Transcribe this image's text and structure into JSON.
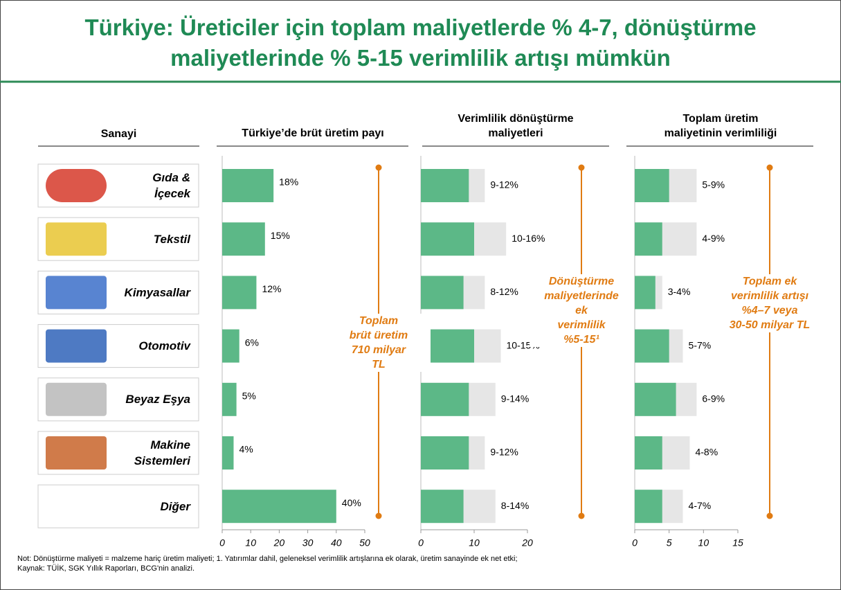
{
  "title": "Türkiye: Üreticiler için toplam maliyetlerde % 4-7, dönüştürme\nmaliyetlerinde % 5-15 verimlilik artışı mümkün",
  "notes": [
    "Not: Dönüştürme maliyeti = malzeme hariç üretim maliyeti; 1. Yatırımlar dahil, geleneksel verimlilik artışlarına ek olarak, üretim sanayinde ek net etki;",
    "Kaynak: TÜİK, SGK Yıllık Raporları, BCG'nin analizi."
  ],
  "chart_data": [
    {
      "type": "bar",
      "category_title": "Sanayi",
      "title": "Türkiye’de brüt üretim payı",
      "categories": [
        "Gıda &\nİçecek",
        "Tekstil",
        "Kimyasallar",
        "Otomotiv",
        "Beyaz Eşya",
        "Makine\nSistemleri",
        "Diğer"
      ],
      "values": [
        18,
        15,
        12,
        6,
        5,
        4,
        40
      ],
      "value_labels": [
        "18%",
        "15%",
        "12%",
        "6%",
        "5%",
        "4%",
        "40%"
      ],
      "color": "#5cb887",
      "xlim": [
        0,
        50
      ],
      "xticks": [
        0,
        10,
        20,
        30,
        40,
        50
      ],
      "annotation": "Toplam\nbrüt üretim\n710 milyar\nTL"
    },
    {
      "type": "range",
      "title": "Verimlilik dönüştürme\nmaliyetleri",
      "series": [
        {
          "color": "#5cb887",
          "values": [
            9,
            10,
            8,
            10,
            9,
            9,
            8
          ]
        },
        {
          "color": "#e6e6e6",
          "values": [
            12,
            16,
            12,
            15,
            14,
            12,
            14
          ]
        }
      ],
      "labels": [
        "9-12%",
        "10-16%",
        "8-12%",
        "10-15%",
        "9-14%",
        "9-12%",
        "8-14%"
      ],
      "xlim": [
        0,
        20
      ],
      "xticks": [
        0,
        10,
        20
      ],
      "annotation": "Dönüştürme\nmaliyetlerinde\nek\nverimlilik\n%5-15¹"
    },
    {
      "type": "range",
      "title": "Toplam üretim\nmaliyetinin verimliliği",
      "series": [
        {
          "color": "#5cb887",
          "values": [
            5,
            4,
            3,
            5,
            6,
            4,
            4
          ]
        },
        {
          "color": "#e6e6e6",
          "values": [
            9,
            9,
            4,
            7,
            9,
            8,
            7
          ]
        }
      ],
      "labels": [
        "5-9%",
        "4-9%",
        "3-4%",
        "5-7%",
        "6-9%",
        "4-8%",
        "4-7%"
      ],
      "xlim": [
        0,
        15
      ],
      "xticks": [
        0,
        5,
        10,
        15
      ],
      "annotation": "Toplam ek\nverimlilik artışı\n%4–7 veya\n30-50 milyar TL"
    }
  ]
}
